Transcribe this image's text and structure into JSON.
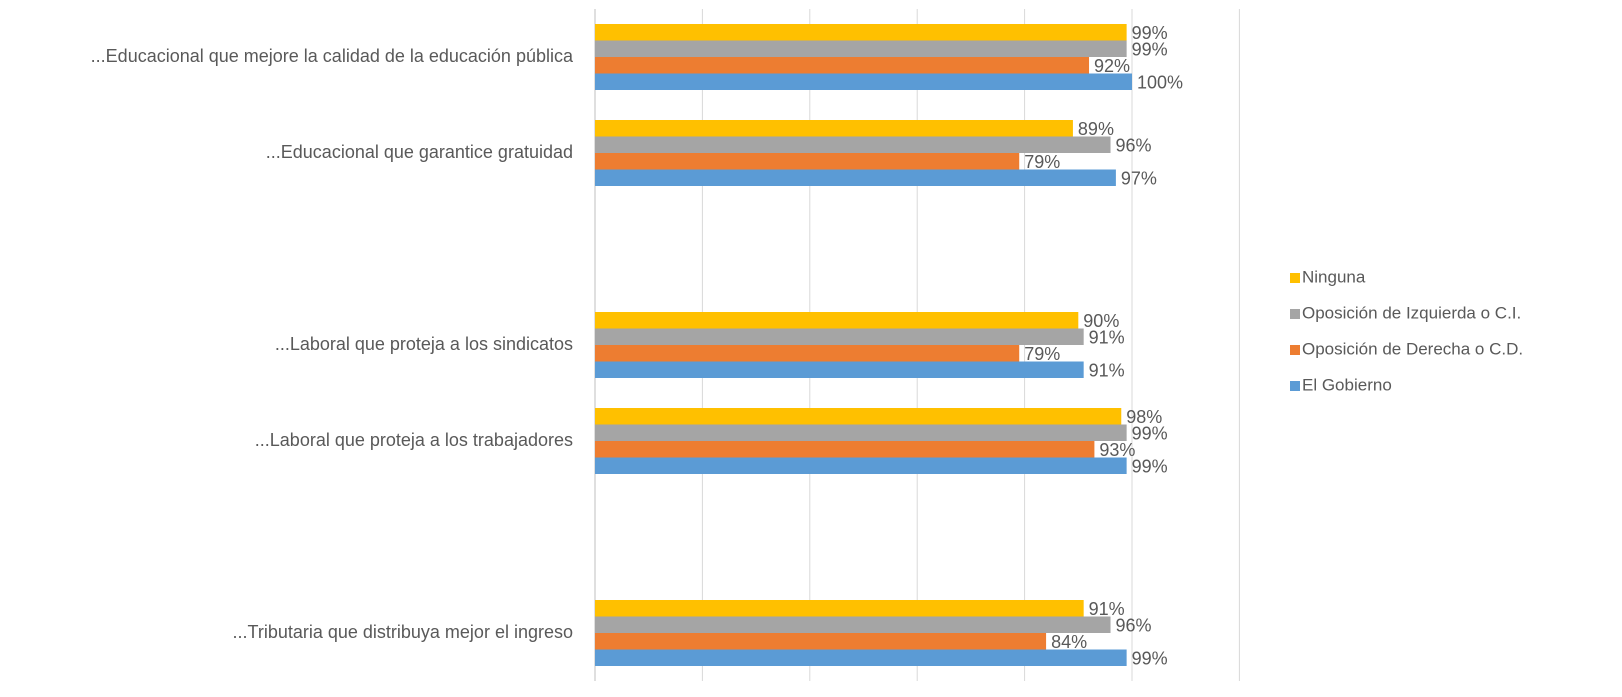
{
  "chart_data": {
    "type": "bar",
    "orientation": "horizontal",
    "categories": [
      "...Educacional que mejore la calidad de la educación pública",
      "...Educacional que garantice gratuidad",
      null,
      "...Laboral que proteja a los sindicatos",
      "...Laboral que proteja a los trabajadores",
      null,
      "...Tributaria que distribuya mejor el ingreso"
    ],
    "series": [
      {
        "name": "Ninguna",
        "color": "#ffc000",
        "values": [
          99,
          89,
          null,
          90,
          98,
          null,
          91
        ],
        "value_labels": [
          "99%",
          "89%",
          null,
          "90%",
          "98%",
          null,
          "91%"
        ]
      },
      {
        "name": "Oposición de Izquierda o C.I.",
        "color": "#a5a5a5",
        "values": [
          99,
          96,
          null,
          91,
          99,
          null,
          96
        ],
        "value_labels": [
          "99%",
          "96%",
          null,
          "91%",
          "99%",
          null,
          "96%"
        ]
      },
      {
        "name": "Oposición de Derecha o C.D.",
        "color": "#ed7d31",
        "values": [
          92,
          79,
          null,
          79,
          93,
          null,
          84
        ],
        "value_labels": [
          "92%",
          "79%",
          null,
          "79%",
          "93%",
          null,
          "84%"
        ]
      },
      {
        "name": "El Gobierno",
        "color": "#5b9bd5",
        "values": [
          100,
          97,
          null,
          91,
          99,
          null,
          99
        ],
        "value_labels": [
          "100%",
          "97%",
          null,
          "91%",
          "99%",
          null,
          "99%"
        ]
      }
    ],
    "xlim": [
      0,
      120
    ],
    "xticks": [
      0,
      20,
      40,
      60,
      80,
      100,
      120
    ],
    "grid": true,
    "legend": "right"
  }
}
